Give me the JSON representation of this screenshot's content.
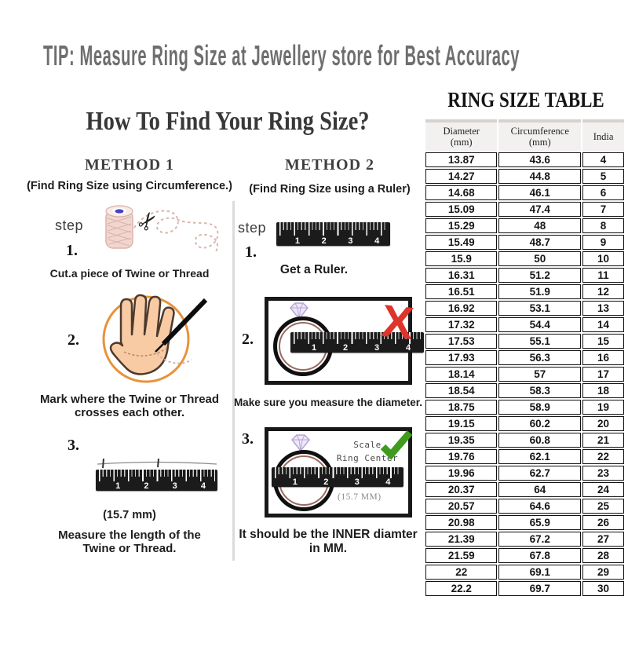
{
  "tip": {
    "text": "TIP: Measure Ring Size at Jewellery store for Best Accuracy"
  },
  "guide": {
    "title": "How To Find Your Ring Size?",
    "step_label": "step",
    "ruler_numbers": [
      "1",
      "2",
      "3",
      "4"
    ],
    "method1": {
      "heading": "METHOD 1",
      "subheading": "(Find Ring Size using Circumference.)",
      "steps": [
        {
          "num": "1.",
          "caption": "Cut.a piece of Twine or Thread"
        },
        {
          "num": "2.",
          "caption": "Mark where the Twine or Thread\ncrosses each other."
        },
        {
          "num": "3.",
          "measurement": "(15.7 mm)",
          "caption": "Measure the length of the\nTwine or Thread."
        }
      ]
    },
    "method2": {
      "heading": "METHOD 2",
      "subheading": "(Find Ring Size using a Ruler)",
      "steps": [
        {
          "num": "1.",
          "caption": "Get a Ruler."
        },
        {
          "num": "2.",
          "caption": "Make sure you measure the diameter."
        },
        {
          "num": "3.",
          "scale_note": "Scale\nRing Center",
          "measurement": "(15.7 MM)",
          "caption": "It should be the INNER diamter\nin MM."
        }
      ]
    }
  },
  "table": {
    "title": "RING SIZE TABLE",
    "headers": [
      "Diameter\n(mm)",
      "Circumference\n(mm)",
      "India"
    ],
    "rows": [
      [
        "13.87",
        "43.6",
        "4"
      ],
      [
        "14.27",
        "44.8",
        "5"
      ],
      [
        "14.68",
        "46.1",
        "6"
      ],
      [
        "15.09",
        "47.4",
        "7"
      ],
      [
        "15.29",
        "48",
        "8"
      ],
      [
        "15.49",
        "48.7",
        "9"
      ],
      [
        "15.9",
        "50",
        "10"
      ],
      [
        "16.31",
        "51.2",
        "11"
      ],
      [
        "16.51",
        "51.9",
        "12"
      ],
      [
        "16.92",
        "53.1",
        "13"
      ],
      [
        "17.32",
        "54.4",
        "14"
      ],
      [
        "17.53",
        "55.1",
        "15"
      ],
      [
        "17.93",
        "56.3",
        "16"
      ],
      [
        "18.14",
        "57",
        "17"
      ],
      [
        "18.54",
        "58.3",
        "18"
      ],
      [
        "18.75",
        "58.9",
        "19"
      ],
      [
        "19.15",
        "60.2",
        "20"
      ],
      [
        "19.35",
        "60.8",
        "21"
      ],
      [
        "19.76",
        "62.1",
        "22"
      ],
      [
        "19.96",
        "62.7",
        "23"
      ],
      [
        "20.37",
        "64",
        "24"
      ],
      [
        "20.57",
        "64.6",
        "25"
      ],
      [
        "20.98",
        "65.9",
        "26"
      ],
      [
        "21.39",
        "67.2",
        "27"
      ],
      [
        "21.59",
        "67.8",
        "28"
      ],
      [
        "22",
        "69.1",
        "29"
      ],
      [
        "22.2",
        "69.7",
        "30"
      ]
    ]
  },
  "icons": {
    "red_x": "X",
    "scissors": "✂"
  },
  "colors": {
    "tip_text": "#6e6e6e",
    "red_x": "#dd342b",
    "green_check": "#3f9b1e",
    "ruler_black": "#1b1b1b",
    "ring_inner": "#9b6a5f",
    "hand_circle_orange": "#e8923a",
    "skin": "#f8cba4",
    "diamond_purple": "#b7a3d6",
    "twine_pink": "#f1d6d0",
    "spool_blue": "#4343bd",
    "divider_gray": "#dbdbdb",
    "header_bg": "#f3f1f0"
  }
}
